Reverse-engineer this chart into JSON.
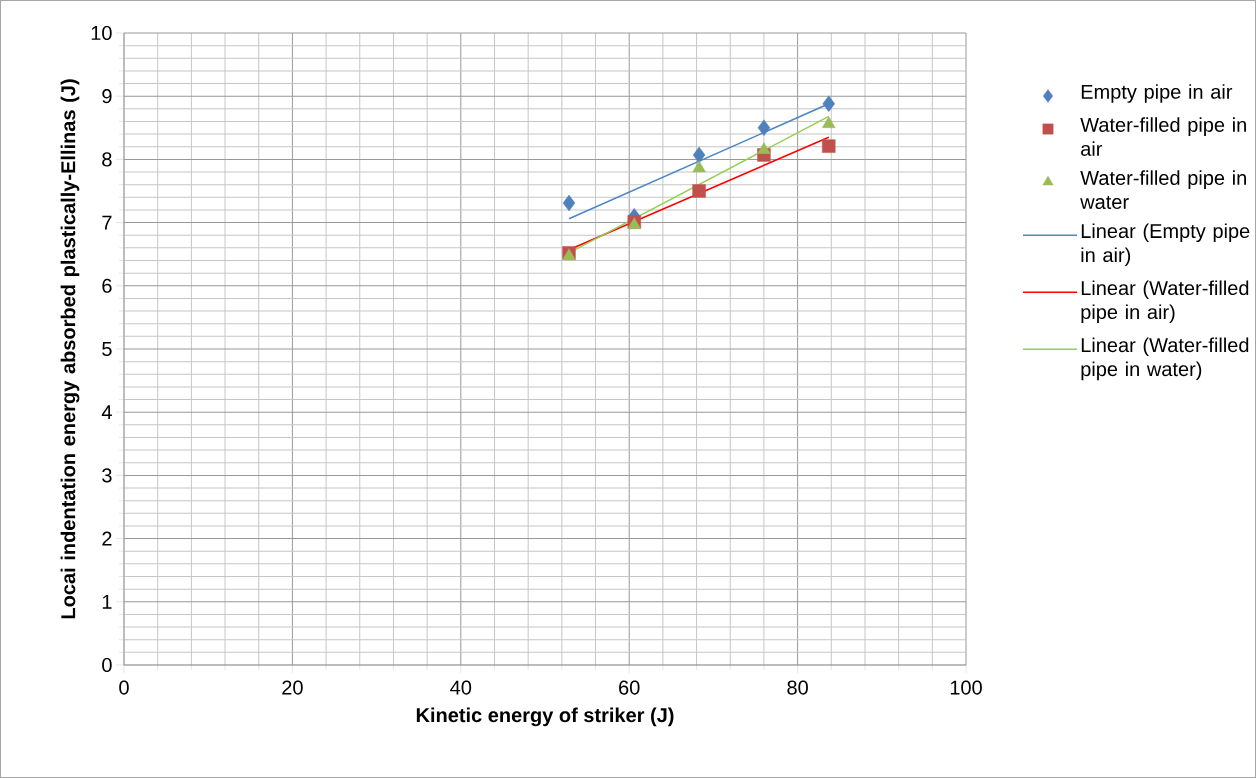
{
  "chart_data": {
    "type": "scatter",
    "xlabel": "Kinetic energy of striker (J)",
    "ylabel": "Locai indentation energy absorbed plastically-Ellinas (J)",
    "series": [
      {
        "name": "Empty pipe in air",
        "marker": "diamond",
        "color": "#4f81bd",
        "x": [
          52.85,
          60.6,
          68.3,
          76.0,
          83.7
        ],
        "values": [
          7.31,
          7.1,
          8.07,
          8.5,
          8.88
        ]
      },
      {
        "name": "Water-filled pipe in air",
        "marker": "square",
        "color": "#c0504d",
        "x": [
          52.85,
          60.6,
          68.3,
          76.0,
          83.7
        ],
        "values": [
          6.52,
          7.01,
          7.5,
          8.07,
          8.21
        ]
      },
      {
        "name": "Water-filled pipe in water",
        "marker": "triangle",
        "color": "#9bbb59",
        "x": [
          52.85,
          60.6,
          68.3,
          76.0,
          83.7
        ],
        "values": [
          6.47,
          6.96,
          7.86,
          8.15,
          8.56
        ]
      },
      {
        "name": "Linear (Empty pipe in air)",
        "type": "line",
        "marker": "none",
        "color": "#4a86c8",
        "x": [
          52.85,
          83.7
        ],
        "values": [
          7.06,
          8.88
        ]
      },
      {
        "name": "Linear (Water-filled pipe in air)",
        "type": "line",
        "marker": "none",
        "color": "#ff0000",
        "x": [
          52.85,
          83.7
        ],
        "values": [
          6.57,
          8.35
        ]
      },
      {
        "name": "Linear (Water-filled pipe in water)",
        "type": "line",
        "marker": "none",
        "color": "#92d050",
        "x": [
          52.85,
          83.7
        ],
        "values": [
          6.52,
          8.68
        ]
      }
    ],
    "xlim": [
      0,
      100
    ],
    "ylim": [
      0,
      10
    ],
    "xticks": [
      0,
      20,
      40,
      60,
      80,
      100
    ],
    "yticks": [
      0,
      1,
      2,
      3,
      4,
      5,
      6,
      7,
      8,
      9,
      10
    ],
    "grid": true,
    "legend": "right"
  }
}
